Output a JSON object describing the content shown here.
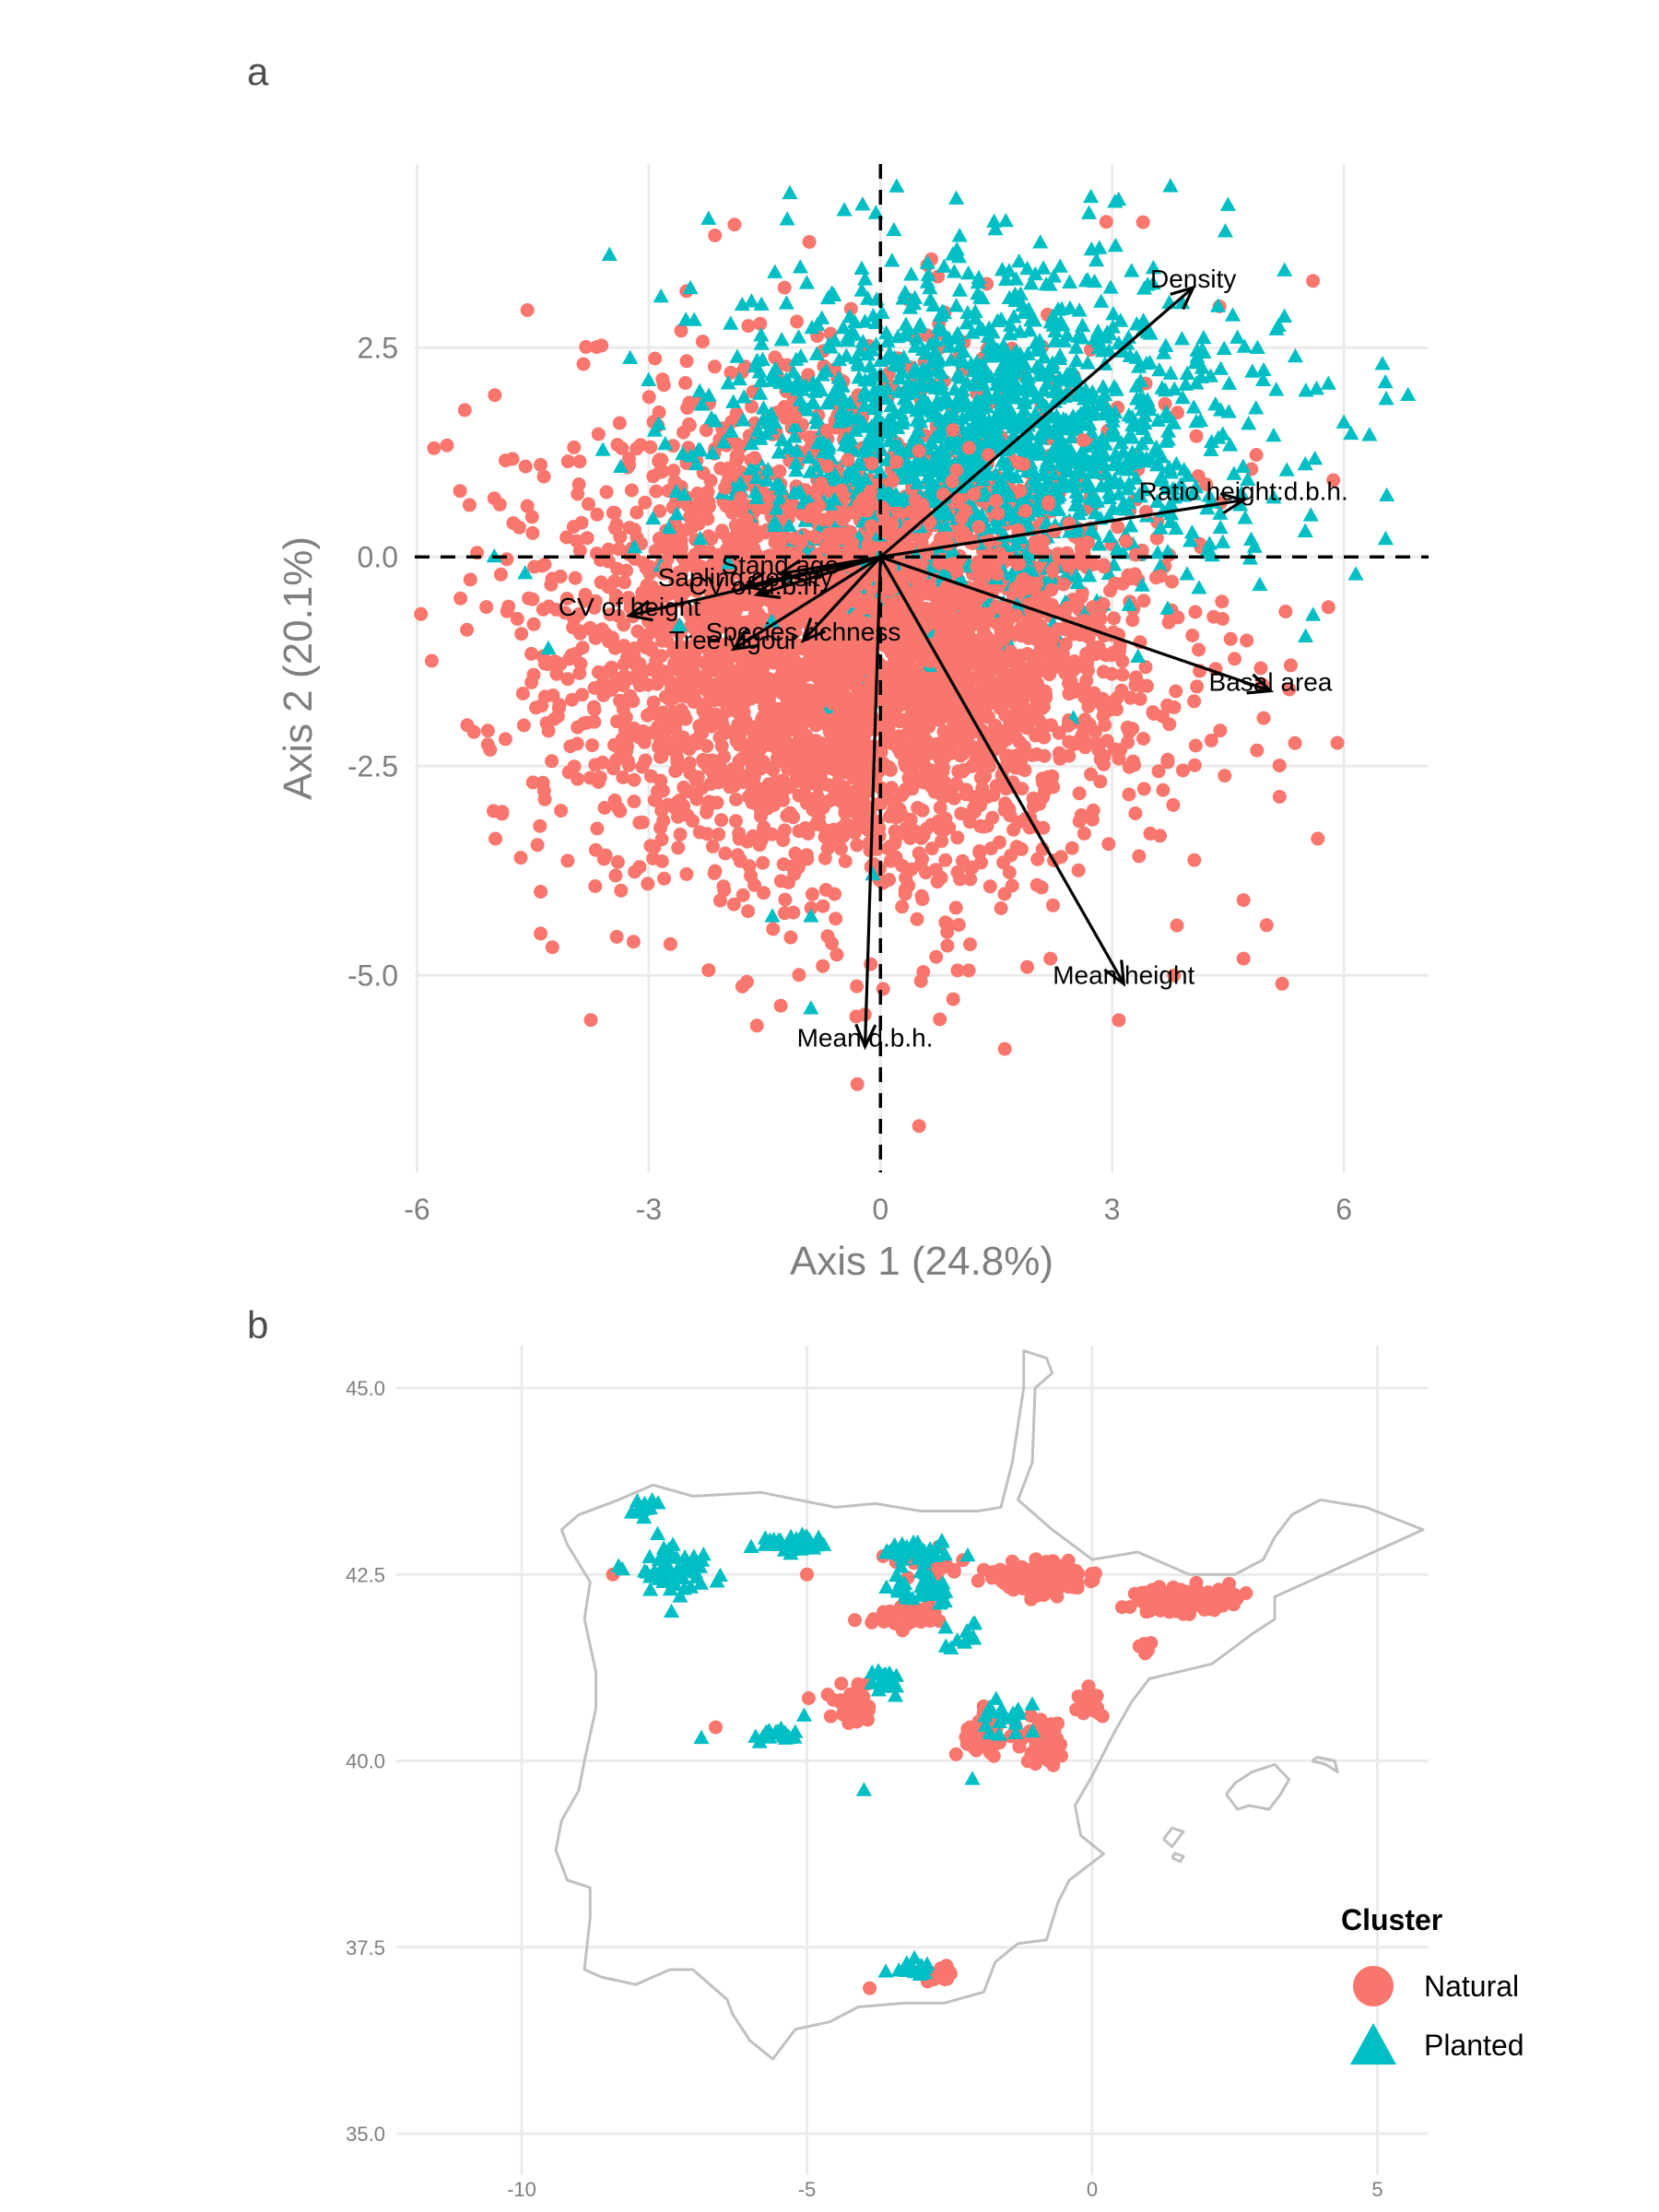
{
  "panel_labels": {
    "a": "a",
    "b": "b"
  },
  "colors": {
    "natural": "#f8766d",
    "planted": "#00bfc4",
    "grid": "#ebebeb",
    "coast": "#c0c0c0"
  },
  "chart_data": [
    {
      "type": "scatter",
      "panel": "a",
      "subtype": "pca-biplot",
      "xlabel": "Axis 1 (24.8%)",
      "ylabel": "Axis 2 (20.1%)",
      "xlim": [
        -6,
        7
      ],
      "ylim": [
        -7.3,
        4.7
      ],
      "x_ticks": [
        -6,
        -3,
        0,
        3,
        6
      ],
      "x_tick_labels": [
        "-6",
        "-3",
        "0",
        "3",
        "6"
      ],
      "y_ticks": [
        -5,
        -2.5,
        0,
        2.5
      ],
      "y_tick_labels": [
        "-5.0",
        "-2.5",
        "0.0",
        "2.5"
      ],
      "grid": true,
      "reference_lines": {
        "x": 0,
        "y": 0,
        "style": "dashed"
      },
      "series": [
        {
          "name": "Natural",
          "marker": "circle",
          "point_cloud": {
            "n": 3200,
            "center": [
              -0.5,
              -0.9
            ],
            "spread": [
              1.9,
              1.45
            ],
            "seed": 7
          },
          "outliers": [
            [
              3.4,
              4.0
            ],
            [
              5.6,
              3.3
            ],
            [
              -5.0,
              0.7
            ],
            [
              -4.4,
              1.1
            ],
            [
              -4.4,
              -4.0
            ],
            [
              -4.4,
              -4.5
            ],
            [
              -1.6,
              -5.6
            ],
            [
              -0.3,
              -6.3
            ],
            [
              0.5,
              -6.8
            ],
            [
              5.2,
              -5.1
            ],
            [
              5.0,
              -4.4
            ],
            [
              4.7,
              -4.1
            ],
            [
              4.7,
              -4.8
            ],
            [
              5.8,
              -0.6
            ],
            [
              3.8,
              -5.0
            ],
            [
              1.9,
              -4.9
            ],
            [
              2.2,
              -4.8
            ]
          ]
        },
        {
          "name": "Planted",
          "marker": "triangle",
          "point_cloud": {
            "n": 1500,
            "center": [
              1.3,
              1.5
            ],
            "spread": [
              1.7,
              1.0
            ],
            "seed": 21
          },
          "outliers": [
            [
              4.5,
              4.2
            ],
            [
              2.7,
              4.1
            ],
            [
              6.5,
              2.3
            ],
            [
              6.0,
              1.6
            ],
            [
              5.5,
              1.1
            ],
            [
              -5.0,
              0.0
            ],
            [
              -4.6,
              -0.2
            ],
            [
              -4.3,
              -1.1
            ],
            [
              -1.4,
              -4.3
            ],
            [
              -0.9,
              -4.3
            ],
            [
              -0.9,
              -5.4
            ],
            [
              -0.1,
              -3.8
            ],
            [
              5.5,
              0.3
            ],
            [
              5.6,
              -0.7
            ],
            [
              4.8,
              0.2
            ]
          ]
        }
      ],
      "vectors": [
        {
          "label": "Density",
          "x": 4.05,
          "y": 3.22
        },
        {
          "label": "Ratio height:d.b.h.",
          "x": 4.7,
          "y": 0.68
        },
        {
          "label": "Basal area",
          "x": 5.05,
          "y": -1.6
        },
        {
          "label": "Mean height",
          "x": 3.15,
          "y": -5.1
        },
        {
          "label": "Mean d.b.h.",
          "x": -0.2,
          "y": -5.85
        },
        {
          "label": "Sapling density",
          "x": -1.75,
          "y": -0.35
        },
        {
          "label": "CV of height",
          "x": -3.25,
          "y": -0.7
        },
        {
          "label": "Tree vigour",
          "x": -1.9,
          "y": -1.1
        },
        {
          "label": "Species richness",
          "x": -1.0,
          "y": -1.0
        },
        {
          "label": "CV of d.b.h.",
          "x": -1.6,
          "y": -0.45
        },
        {
          "label": "Stand age",
          "x": -1.3,
          "y": -0.2
        }
      ]
    },
    {
      "type": "scatter",
      "panel": "b",
      "subtype": "map",
      "xlim": [
        -12,
        6
      ],
      "ylim": [
        34.7,
        45.5
      ],
      "x_ticks": [
        -10,
        -5,
        0,
        5
      ],
      "x_tick_labels": [
        "-10",
        "-5",
        "0",
        "5"
      ],
      "y_ticks": [
        35,
        37.5,
        40,
        42.5,
        45
      ],
      "y_tick_labels": [
        "35.0",
        "37.5",
        "40.0",
        "42.5",
        "45.0"
      ],
      "grid": true,
      "coastline_lonlat": [
        [
          -8.9,
          41.9
        ],
        [
          -8.8,
          42.4
        ],
        [
          -9.2,
          42.9
        ],
        [
          -9.3,
          43.1
        ],
        [
          -9.0,
          43.3
        ],
        [
          -8.3,
          43.5
        ],
        [
          -7.7,
          43.7
        ],
        [
          -7.0,
          43.55
        ],
        [
          -5.8,
          43.6
        ],
        [
          -4.5,
          43.4
        ],
        [
          -3.8,
          43.45
        ],
        [
          -3.0,
          43.35
        ],
        [
          -2.0,
          43.35
        ],
        [
          -1.6,
          43.4
        ],
        [
          -1.4,
          44.0
        ],
        [
          -1.2,
          45.0
        ],
        [
          -1.2,
          45.5
        ],
        [
          -0.8,
          45.4
        ],
        [
          -0.7,
          45.2
        ],
        [
          -1.0,
          45.0
        ],
        [
          -1.05,
          44.0
        ],
        [
          -1.3,
          43.5
        ],
        [
          -0.7,
          43.1
        ],
        [
          0.0,
          42.7
        ],
        [
          0.8,
          42.8
        ],
        [
          1.7,
          42.5
        ],
        [
          2.5,
          42.5
        ],
        [
          3.0,
          42.7
        ],
        [
          3.2,
          43.0
        ],
        [
          3.5,
          43.3
        ],
        [
          4.0,
          43.5
        ],
        [
          4.8,
          43.4
        ],
        [
          5.8,
          43.1
        ],
        [
          3.2,
          42.2
        ],
        [
          3.2,
          41.9
        ],
        [
          2.8,
          41.7
        ],
        [
          2.1,
          41.3
        ],
        [
          1.0,
          41.1
        ],
        [
          0.7,
          40.8
        ],
        [
          0.4,
          40.4
        ],
        [
          0.0,
          39.8
        ],
        [
          -0.3,
          39.4
        ],
        [
          -0.2,
          39.0
        ],
        [
          0.2,
          38.75
        ],
        [
          -0.4,
          38.4
        ],
        [
          -0.6,
          38.1
        ],
        [
          -0.8,
          37.6
        ],
        [
          -1.3,
          37.55
        ],
        [
          -1.7,
          37.3
        ],
        [
          -1.9,
          36.9
        ],
        [
          -2.6,
          36.75
        ],
        [
          -3.3,
          36.75
        ],
        [
          -4.1,
          36.7
        ],
        [
          -4.6,
          36.5
        ],
        [
          -5.2,
          36.4
        ],
        [
          -5.6,
          36.0
        ],
        [
          -6.0,
          36.25
        ],
        [
          -6.3,
          36.6
        ],
        [
          -6.4,
          36.8
        ],
        [
          -7.0,
          37.2
        ],
        [
          -7.4,
          37.2
        ],
        [
          -8.0,
          37.0
        ],
        [
          -8.6,
          37.1
        ],
        [
          -8.9,
          37.2
        ],
        [
          -8.8,
          37.9
        ],
        [
          -8.8,
          38.3
        ],
        [
          -9.2,
          38.4
        ],
        [
          -9.4,
          38.8
        ],
        [
          -9.3,
          39.2
        ],
        [
          -9.0,
          39.6
        ],
        [
          -8.9,
          40.0
        ],
        [
          -8.7,
          40.7
        ],
        [
          -8.7,
          41.2
        ],
        [
          -8.9,
          41.9
        ]
      ],
      "mallorca_lonlat": [
        [
          2.35,
          39.55
        ],
        [
          2.55,
          39.35
        ],
        [
          2.75,
          39.4
        ],
        [
          3.1,
          39.35
        ],
        [
          3.3,
          39.55
        ],
        [
          3.45,
          39.75
        ],
        [
          3.2,
          39.95
        ],
        [
          2.8,
          39.85
        ],
        [
          2.5,
          39.7
        ],
        [
          2.35,
          39.55
        ]
      ],
      "menorca_lonlat": [
        [
          3.85,
          40.0
        ],
        [
          4.1,
          39.95
        ],
        [
          4.3,
          39.85
        ],
        [
          4.25,
          40.0
        ],
        [
          3.95,
          40.05
        ],
        [
          3.85,
          40.0
        ]
      ],
      "ibiza_lonlat": [
        [
          1.25,
          38.95
        ],
        [
          1.4,
          38.85
        ],
        [
          1.6,
          39.05
        ],
        [
          1.4,
          39.1
        ],
        [
          1.25,
          38.95
        ]
      ],
      "formentera_lonlat": [
        [
          1.4,
          38.7
        ],
        [
          1.55,
          38.65
        ],
        [
          1.6,
          38.72
        ],
        [
          1.45,
          38.76
        ],
        [
          1.4,
          38.7
        ]
      ],
      "series": [
        {
          "name": "Natural",
          "marker": "circle",
          "clusters": [
            {
              "lon": -0.85,
              "lat": 42.45,
              "sdx": 0.65,
              "sdy": 0.17,
              "n": 150
            },
            {
              "lon": 1.6,
              "lat": 42.15,
              "sdx": 0.7,
              "sdy": 0.14,
              "n": 170
            },
            {
              "lon": -2.8,
              "lat": 42.65,
              "sdx": 0.5,
              "sdy": 0.18,
              "n": 20
            },
            {
              "lon": -3.2,
              "lat": 41.95,
              "sdx": 0.5,
              "sdy": 0.15,
              "n": 40
            },
            {
              "lon": -1.9,
              "lat": 40.35,
              "sdx": 0.25,
              "sdy": 0.25,
              "n": 70
            },
            {
              "lon": -0.9,
              "lat": 40.25,
              "sdx": 0.3,
              "sdy": 0.25,
              "n": 70
            },
            {
              "lon": -0.05,
              "lat": 40.75,
              "sdx": 0.2,
              "sdy": 0.15,
              "n": 25
            },
            {
              "lon": -4.2,
              "lat": 40.8,
              "sdx": 0.4,
              "sdy": 0.25,
              "n": 35
            },
            {
              "lon": -2.75,
              "lat": 37.15,
              "sdx": 0.25,
              "sdy": 0.12,
              "n": 12
            },
            {
              "lon": 0.9,
              "lat": 41.5,
              "sdx": 0.12,
              "sdy": 0.1,
              "n": 8
            }
          ],
          "extras": [
            [
              -8.4,
              42.5
            ],
            [
              -3.9,
              36.95
            ],
            [
              -6.6,
              40.45
            ],
            [
              -5.0,
              42.5
            ]
          ]
        },
        {
          "name": "Planted",
          "marker": "triangle",
          "clusters": [
            {
              "lon": -7.8,
              "lat": 43.35,
              "sdx": 0.25,
              "sdy": 0.12,
              "n": 14
            },
            {
              "lon": -7.2,
              "lat": 42.55,
              "sdx": 0.6,
              "sdy": 0.3,
              "n": 55
            },
            {
              "lon": -5.2,
              "lat": 42.9,
              "sdx": 0.45,
              "sdy": 0.1,
              "n": 40
            },
            {
              "lon": -3.1,
              "lat": 42.8,
              "sdx": 0.55,
              "sdy": 0.12,
              "n": 40
            },
            {
              "lon": -3.0,
              "lat": 42.3,
              "sdx": 0.45,
              "sdy": 0.2,
              "n": 40
            },
            {
              "lon": -2.2,
              "lat": 41.6,
              "sdx": 0.35,
              "sdy": 0.2,
              "n": 12
            },
            {
              "lon": -3.55,
              "lat": 41.1,
              "sdx": 0.25,
              "sdy": 0.15,
              "n": 18
            },
            {
              "lon": -5.5,
              "lat": 40.35,
              "sdx": 0.35,
              "sdy": 0.08,
              "n": 26
            },
            {
              "lon": -1.5,
              "lat": 40.6,
              "sdx": 0.35,
              "sdy": 0.25,
              "n": 18
            },
            {
              "lon": -3.1,
              "lat": 37.2,
              "sdx": 0.3,
              "sdy": 0.12,
              "n": 14
            }
          ],
          "extras": [
            [
              -6.85,
              40.3
            ],
            [
              -5.05,
              40.6
            ],
            [
              -4.0,
              39.6
            ],
            [
              -2.1,
              39.75
            ],
            [
              -1.05,
              40.75
            ]
          ]
        }
      ]
    }
  ],
  "legend": {
    "title": "Cluster",
    "items": [
      {
        "label": "Natural",
        "marker": "circle"
      },
      {
        "label": "Planted",
        "marker": "triangle"
      }
    ]
  }
}
